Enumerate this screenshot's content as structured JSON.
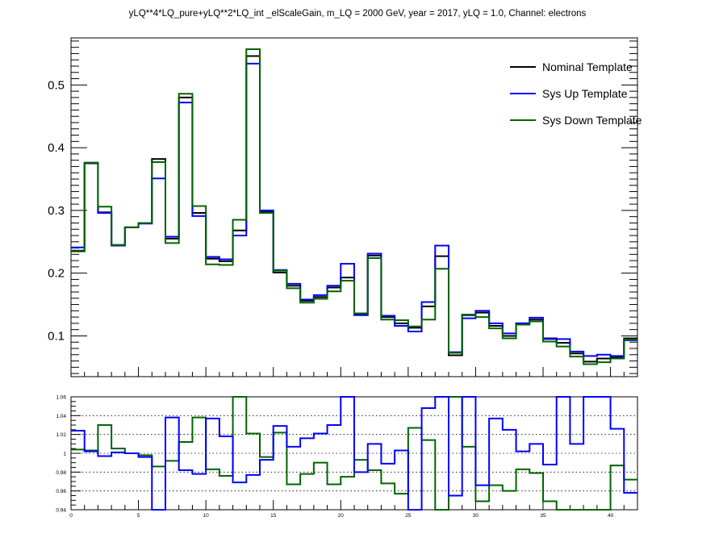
{
  "title": "yLQ**4*LQ_pure+yLQ**2*LQ_int _elScaleGain, m_LQ = 2000 GeV, year = 2017, yLQ = 1.0, Channel: electrons",
  "colors": {
    "nominal": "#000000",
    "up": "#0000ff",
    "down": "#006400",
    "grid": "#000000"
  },
  "chart_data": [
    {
      "type": "line",
      "drawstyle": "steps",
      "title": "yLQ**4*LQ_pure+yLQ**2*LQ_int _elScaleGain, m_LQ = 2000 GeV, year = 2017, yLQ = 1.0, Channel: electrons",
      "xlim": [
        0,
        42
      ],
      "ylim": [
        0.035,
        0.575
      ],
      "yticks": [
        0.1,
        0.2,
        0.3,
        0.4,
        0.5
      ],
      "ytick_labels": [
        "0.1",
        "0.2",
        "0.3",
        "0.4",
        "0.5"
      ],
      "legend_position": "top-right",
      "grid": false,
      "series": [
        {
          "name": "Nominal Template",
          "color": "#000000",
          "values": [
            0.235,
            0.375,
            0.297,
            0.244,
            0.273,
            0.28,
            0.382,
            0.255,
            0.48,
            0.296,
            0.223,
            0.219,
            0.268,
            0.546,
            0.298,
            0.201,
            0.18,
            0.156,
            0.162,
            0.177,
            0.193,
            0.135,
            0.228,
            0.13,
            0.12,
            0.113,
            0.147,
            0.227,
            0.069,
            0.133,
            0.137,
            0.116,
            0.1,
            0.12,
            0.126,
            0.096,
            0.089,
            0.072,
            0.059,
            0.064,
            0.066,
            0.096
          ]
        },
        {
          "name": "Sys Up Template",
          "color": "#0000ff",
          "values": [
            0.241,
            0.376,
            0.296,
            0.244,
            0.273,
            0.279,
            0.351,
            0.258,
            0.472,
            0.291,
            0.226,
            0.222,
            0.26,
            0.534,
            0.3,
            0.205,
            0.183,
            0.158,
            0.165,
            0.18,
            0.215,
            0.133,
            0.231,
            0.132,
            0.116,
            0.107,
            0.154,
            0.244,
            0.074,
            0.128,
            0.14,
            0.12,
            0.104,
            0.12,
            0.129,
            0.095,
            0.095,
            0.075,
            0.068,
            0.07,
            0.068,
            0.093
          ]
        },
        {
          "name": "Sys Down Template",
          "color": "#006400",
          "values": [
            0.236,
            0.376,
            0.306,
            0.245,
            0.273,
            0.28,
            0.377,
            0.248,
            0.486,
            0.307,
            0.214,
            0.213,
            0.285,
            0.557,
            0.296,
            0.204,
            0.176,
            0.153,
            0.159,
            0.171,
            0.188,
            0.136,
            0.224,
            0.126,
            0.125,
            0.115,
            0.126,
            0.207,
            0.073,
            0.134,
            0.13,
            0.112,
            0.096,
            0.118,
            0.123,
            0.091,
            0.083,
            0.067,
            0.055,
            0.058,
            0.064,
            0.094
          ]
        }
      ]
    },
    {
      "type": "line",
      "drawstyle": "steps",
      "xlim": [
        0,
        42
      ],
      "ylim": [
        0.94,
        1.06
      ],
      "xticks": [
        0,
        5,
        10,
        15,
        20,
        25,
        30,
        35,
        40
      ],
      "xtick_labels": [
        "0",
        "5",
        "10",
        "15",
        "20",
        "25",
        "30",
        "35",
        "40"
      ],
      "yticks": [
        0.94,
        0.96,
        0.98,
        1.0,
        1.02,
        1.04,
        1.06
      ],
      "ytick_labels": [
        "0.94",
        "0.96",
        "0.98",
        "1",
        "1.02",
        "1.04",
        "1.06"
      ],
      "grid": true,
      "series": [
        {
          "color": "#0000ff",
          "values": [
            1.024,
            1.002,
            0.997,
            1.001,
            1.0,
            0.996,
            0.92,
            1.038,
            0.982,
            0.978,
            1.037,
            1.018,
            0.969,
            0.977,
            0.993,
            1.029,
            1.007,
            1.016,
            1.021,
            1.03,
            1.12,
            0.98,
            1.01,
            0.989,
            1.003,
            0.92,
            1.048,
            1.08,
            0.955,
            1.089,
            0.966,
            1.037,
            1.025,
            1.002,
            1.01,
            0.988,
            1.06,
            1.01,
            1.155,
            1.09,
            1.026,
            0.958
          ]
        },
        {
          "color": "#006400",
          "values": [
            1.004,
            1.003,
            1.03,
            1.005,
            1.0,
            0.998,
            0.986,
            0.992,
            1.012,
            1.038,
            0.983,
            0.976,
            1.061,
            1.021,
            0.996,
            1.022,
            0.967,
            0.978,
            0.99,
            0.967,
            0.975,
            0.993,
            0.982,
            0.968,
            0.957,
            1.027,
            1.014,
            0.913,
            1.06,
            1.007,
            0.949,
            0.966,
            0.96,
            0.983,
            0.979,
            0.949,
            0.917,
            0.931,
            0.932,
            0.92,
            0.987,
            0.972
          ]
        }
      ]
    }
  ]
}
